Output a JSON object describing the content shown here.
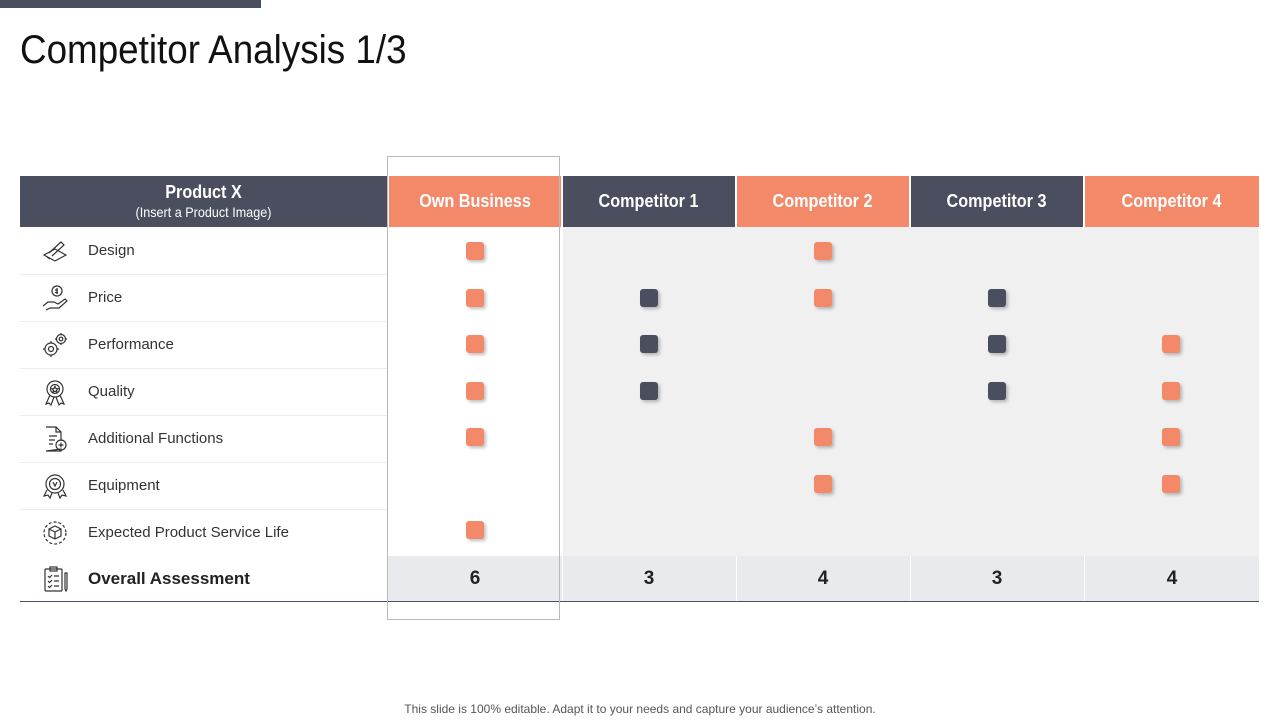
{
  "title": "Competitor Analysis 1/3",
  "header": {
    "product_title": "Product X",
    "product_subtitle": "(Insert a Product Image)",
    "columns": [
      "Own Business",
      "Competitor 1",
      "Competitor 2",
      "Competitor 3",
      "Competitor 4"
    ]
  },
  "colors": {
    "orange": "#f4896a",
    "dark": "#4a4e5e",
    "gray": "#f0f0f1"
  },
  "rows": [
    {
      "label": "Design",
      "icon": "design-icon",
      "marks": [
        "orange",
        "",
        "orange",
        "",
        ""
      ]
    },
    {
      "label": "Price",
      "icon": "price-hand-coin-icon",
      "marks": [
        "orange",
        "dark",
        "orange",
        "dark",
        ""
      ]
    },
    {
      "label": "Performance",
      "icon": "gears-icon",
      "marks": [
        "orange",
        "dark",
        "",
        "dark",
        "orange"
      ]
    },
    {
      "label": "Quality",
      "icon": "award-ribbon-icon",
      "marks": [
        "orange",
        "dark",
        "",
        "dark",
        "orange"
      ]
    },
    {
      "label": "Additional Functions",
      "icon": "document-plus-icon",
      "marks": [
        "orange",
        "",
        "orange",
        "",
        "orange"
      ]
    },
    {
      "label": "Equipment",
      "icon": "equipment-badge-icon",
      "marks": [
        "",
        "",
        "orange",
        "",
        "orange"
      ]
    },
    {
      "label": "Expected Product Service Life",
      "icon": "cube-cycle-icon",
      "marks": [
        "orange",
        "",
        "",
        "",
        ""
      ]
    }
  ],
  "overall": {
    "label": "Overall Assessment",
    "icon": "clipboard-checklist-icon",
    "values": [
      "6",
      "3",
      "4",
      "3",
      "4"
    ]
  },
  "footer": "This slide is 100% editable. Adapt it to your needs and capture your audience’s attention."
}
